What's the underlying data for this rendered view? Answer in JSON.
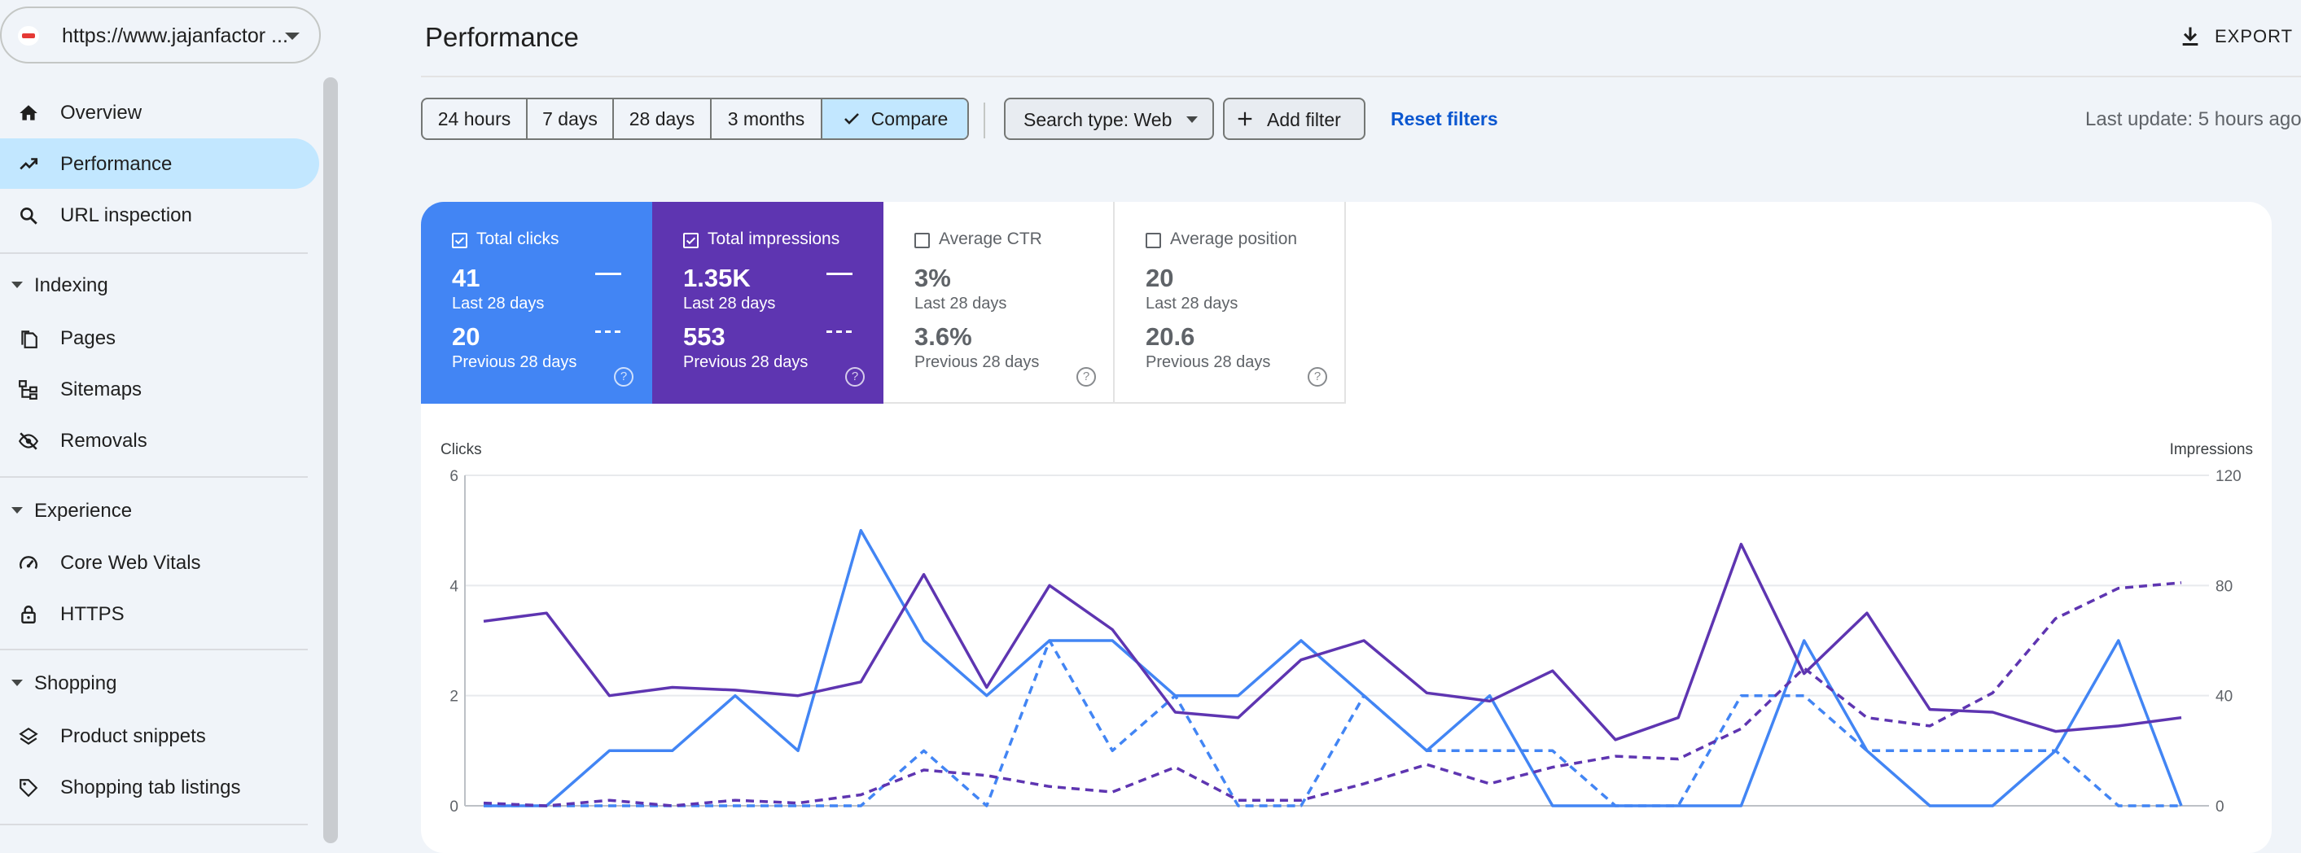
{
  "property": {
    "url": "https://www.jajanfactor ..."
  },
  "sidebar": {
    "items": [
      {
        "label": "Overview",
        "icon": "home-icon"
      },
      {
        "label": "Performance",
        "icon": "trending-up-icon",
        "active": true
      },
      {
        "label": "URL inspection",
        "icon": "search-icon"
      }
    ],
    "sections": [
      {
        "label": "Indexing",
        "items": [
          {
            "label": "Pages",
            "icon": "pages-icon"
          },
          {
            "label": "Sitemaps",
            "icon": "sitemap-icon"
          },
          {
            "label": "Removals",
            "icon": "visibility-off-icon"
          }
        ]
      },
      {
        "label": "Experience",
        "items": [
          {
            "label": "Core Web Vitals",
            "icon": "speed-icon"
          },
          {
            "label": "HTTPS",
            "icon": "lock-icon"
          }
        ]
      },
      {
        "label": "Shopping",
        "items": [
          {
            "label": "Product snippets",
            "icon": "layers-icon"
          },
          {
            "label": "Shopping tab listings",
            "icon": "tag-icon"
          }
        ]
      }
    ]
  },
  "header": {
    "title": "Performance",
    "export_label": "EXPORT"
  },
  "filters": {
    "ranges": [
      "24 hours",
      "7 days",
      "28 days",
      "3 months",
      "Compare"
    ],
    "selected_range": "Compare",
    "search_type": "Search type: Web",
    "add_filter": "Add filter",
    "reset": "Reset filters",
    "last_update": "Last update: 5 hours ago"
  },
  "metrics": {
    "clicks": {
      "label": "Total clicks",
      "current": "41",
      "current_period": "Last 28 days",
      "previous": "20",
      "previous_period": "Previous 28 days",
      "checked": true
    },
    "impressions": {
      "label": "Total impressions",
      "current": "1.35K",
      "current_period": "Last 28 days",
      "previous": "553",
      "previous_period": "Previous 28 days",
      "checked": true
    },
    "ctr": {
      "label": "Average CTR",
      "current": "3%",
      "current_period": "Last 28 days",
      "previous": "3.6%",
      "previous_period": "Previous 28 days",
      "checked": false
    },
    "position": {
      "label": "Average position",
      "current": "20",
      "current_period": "Last 28 days",
      "previous": "20.6",
      "previous_period": "Previous 28 days",
      "checked": false
    }
  },
  "colors": {
    "clicks": "#4285f4",
    "impressions": "#5e35b1",
    "active_nav": "#c2e7ff",
    "link": "#0b57d0"
  },
  "chart_data": {
    "type": "line",
    "ylabel_left": "Clicks",
    "ylabel_right": "Impressions",
    "ylim_left": [
      0,
      6
    ],
    "ylim_right": [
      0,
      120
    ],
    "yticks_left": [
      0,
      2,
      4,
      6
    ],
    "yticks_right": [
      0,
      40,
      80,
      120
    ],
    "x": [
      1,
      2,
      3,
      4,
      5,
      6,
      7,
      8,
      9,
      10,
      11,
      12,
      13,
      14,
      15,
      16,
      17,
      18,
      19,
      20,
      21,
      22,
      23,
      24,
      25,
      26,
      27,
      28
    ],
    "xticks": [
      3,
      6,
      9,
      12,
      15,
      18,
      21,
      24,
      27
    ],
    "grid": true,
    "series": [
      {
        "axis": "left",
        "style": "solid",
        "color": "#4285f4",
        "values": [
          0,
          0,
          1,
          1,
          2,
          1,
          5,
          3,
          2,
          3,
          3,
          2,
          2,
          3,
          2,
          1,
          2,
          0,
          0,
          0,
          0,
          3,
          1,
          0,
          0,
          1,
          3,
          0
        ]
      },
      {
        "axis": "left",
        "style": "dashed",
        "color": "#4285f4",
        "values": [
          0,
          0,
          0,
          0,
          0,
          0,
          0,
          1,
          0,
          3,
          1,
          2,
          0,
          0,
          2,
          1,
          1,
          1,
          0,
          0,
          2,
          2,
          1,
          1,
          1,
          1,
          0,
          0
        ]
      },
      {
        "axis": "right",
        "style": "solid",
        "color": "#5e35b1",
        "values": [
          67,
          70,
          40,
          43,
          42,
          40,
          45,
          84,
          43,
          80,
          64,
          34,
          32,
          53,
          60,
          41,
          38,
          49,
          24,
          32,
          95,
          48,
          70,
          35,
          34,
          27,
          29,
          32
        ]
      },
      {
        "axis": "right",
        "style": "dashed",
        "color": "#5e35b1",
        "values": [
          1,
          0,
          2,
          0,
          2,
          1,
          4,
          13,
          11,
          7,
          5,
          14,
          2,
          2,
          8,
          15,
          8,
          14,
          18,
          17,
          28,
          50,
          32,
          29,
          41,
          68,
          79,
          81
        ]
      }
    ]
  }
}
